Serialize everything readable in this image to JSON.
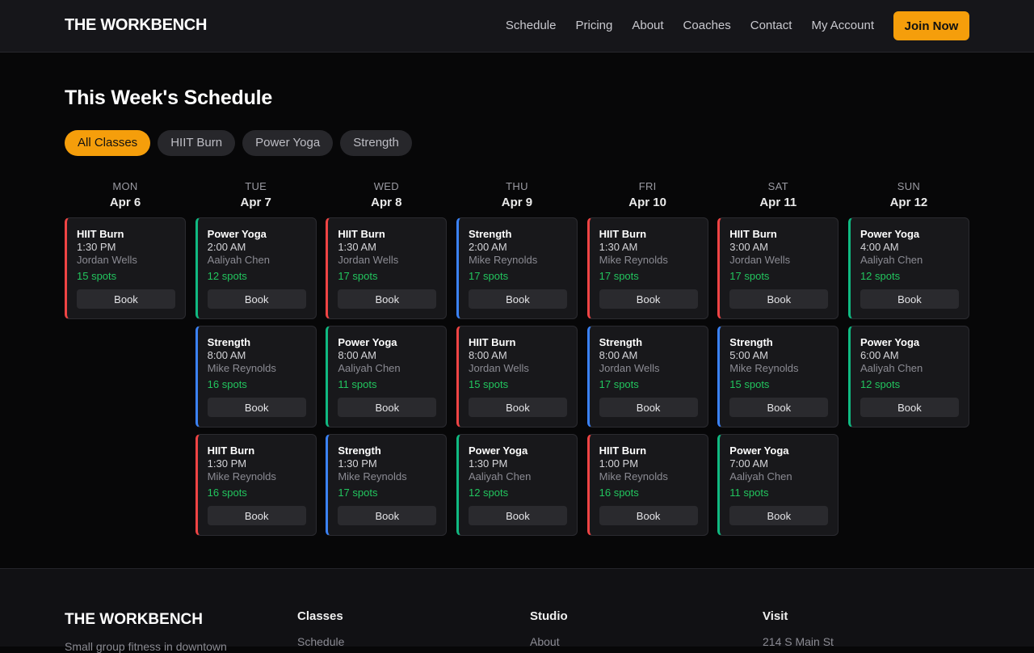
{
  "header": {
    "logo": "THE WORKBENCH",
    "nav": [
      "Schedule",
      "Pricing",
      "About",
      "Coaches",
      "Contact",
      "My Account"
    ],
    "cta": "Join Now"
  },
  "schedule": {
    "title": "This Week's Schedule",
    "filters": [
      "All Classes",
      "HIIT Burn",
      "Power Yoga",
      "Strength"
    ],
    "active_filter": "All Classes",
    "class_colors": {
      "HIIT Burn": "#ef4444",
      "Power Yoga": "#10b981",
      "Strength": "#3b82f6"
    },
    "book_label": "Book",
    "days": [
      {
        "dow": "MON",
        "date": "Apr 6",
        "classes": [
          {
            "name": "HIIT Burn",
            "time": "1:30 PM",
            "coach": "Jordan Wells",
            "spots": "15 spots"
          }
        ]
      },
      {
        "dow": "TUE",
        "date": "Apr 7",
        "classes": [
          {
            "name": "Power Yoga",
            "time": "2:00 AM",
            "coach": "Aaliyah Chen",
            "spots": "12 spots"
          },
          {
            "name": "Strength",
            "time": "8:00 AM",
            "coach": "Mike Reynolds",
            "spots": "16 spots"
          },
          {
            "name": "HIIT Burn",
            "time": "1:30 PM",
            "coach": "Mike Reynolds",
            "spots": "16 spots"
          }
        ]
      },
      {
        "dow": "WED",
        "date": "Apr 8",
        "classes": [
          {
            "name": "HIIT Burn",
            "time": "1:30 AM",
            "coach": "Jordan Wells",
            "spots": "17 spots"
          },
          {
            "name": "Power Yoga",
            "time": "8:00 AM",
            "coach": "Aaliyah Chen",
            "spots": "11 spots"
          },
          {
            "name": "Strength",
            "time": "1:30 PM",
            "coach": "Mike Reynolds",
            "spots": "17 spots"
          }
        ]
      },
      {
        "dow": "THU",
        "date": "Apr 9",
        "classes": [
          {
            "name": "Strength",
            "time": "2:00 AM",
            "coach": "Mike Reynolds",
            "spots": "17 spots"
          },
          {
            "name": "HIIT Burn",
            "time": "8:00 AM",
            "coach": "Jordan Wells",
            "spots": "15 spots"
          },
          {
            "name": "Power Yoga",
            "time": "1:30 PM",
            "coach": "Aaliyah Chen",
            "spots": "12 spots"
          }
        ]
      },
      {
        "dow": "FRI",
        "date": "Apr 10",
        "classes": [
          {
            "name": "HIIT Burn",
            "time": "1:30 AM",
            "coach": "Mike Reynolds",
            "spots": "17 spots"
          },
          {
            "name": "Strength",
            "time": "8:00 AM",
            "coach": "Jordan Wells",
            "spots": "17 spots"
          },
          {
            "name": "HIIT Burn",
            "time": "1:00 PM",
            "coach": "Mike Reynolds",
            "spots": "16 spots"
          }
        ]
      },
      {
        "dow": "SAT",
        "date": "Apr 11",
        "classes": [
          {
            "name": "HIIT Burn",
            "time": "3:00 AM",
            "coach": "Jordan Wells",
            "spots": "17 spots"
          },
          {
            "name": "Strength",
            "time": "5:00 AM",
            "coach": "Mike Reynolds",
            "spots": "15 spots"
          },
          {
            "name": "Power Yoga",
            "time": "7:00 AM",
            "coach": "Aaliyah Chen",
            "spots": "11 spots"
          }
        ]
      },
      {
        "dow": "SUN",
        "date": "Apr 12",
        "classes": [
          {
            "name": "Power Yoga",
            "time": "4:00 AM",
            "coach": "Aaliyah Chen",
            "spots": "12 spots"
          },
          {
            "name": "Power Yoga",
            "time": "6:00 AM",
            "coach": "Aaliyah Chen",
            "spots": "12 spots"
          }
        ]
      }
    ]
  },
  "footer": {
    "logo": "THE WORKBENCH",
    "tagline": "Small group fitness in downtown",
    "columns": [
      {
        "title": "Classes",
        "links": [
          "Schedule"
        ]
      },
      {
        "title": "Studio",
        "links": [
          "About"
        ]
      },
      {
        "title": "Visit",
        "links": [
          "214 S Main St"
        ]
      }
    ]
  }
}
